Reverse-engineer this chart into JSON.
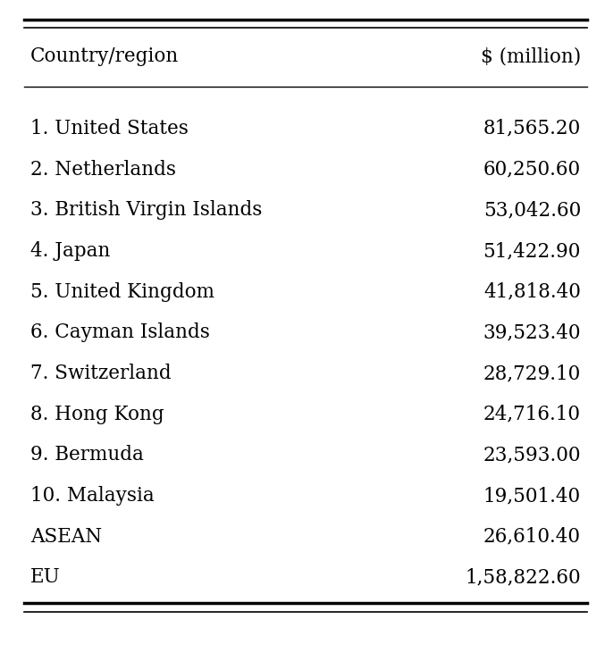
{
  "headers": [
    "Country/region",
    "$ (million)"
  ],
  "rows": [
    [
      "1. United States",
      "81,565.20"
    ],
    [
      "2. Netherlands",
      "60,250.60"
    ],
    [
      "3. British Virgin Islands",
      "53,042.60"
    ],
    [
      "4. Japan",
      "51,422.90"
    ],
    [
      "5. United Kingdom",
      "41,818.40"
    ],
    [
      "6. Cayman Islands",
      "39,523.40"
    ],
    [
      "7. Switzerland",
      "28,729.10"
    ],
    [
      "8. Hong Kong",
      "24,716.10"
    ],
    [
      "9. Bermuda",
      "23,593.00"
    ],
    [
      "10. Malaysia",
      "19,501.40"
    ],
    [
      "ASEAN",
      "26,610.40"
    ],
    [
      "EU",
      "1,58,822.60"
    ]
  ],
  "bg_color": "#ffffff",
  "text_color": "#000000",
  "font_size": 15.5,
  "header_font_size": 15.5,
  "figsize": [
    6.77,
    7.31
  ],
  "dpi": 100
}
